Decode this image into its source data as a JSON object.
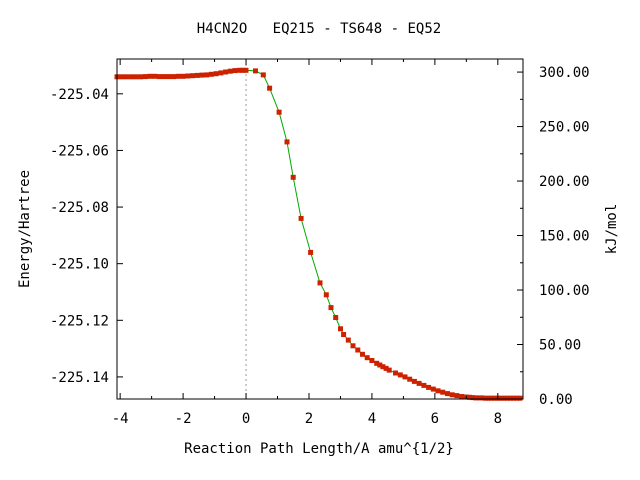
{
  "chart_data": {
    "type": "line",
    "title": "H4CN2O   EQ215 - TS648 - EQ52",
    "xlabel": "Reaction Path Length/A amu^{1/2}",
    "ylabel": "Energy/Hartree",
    "y2label": "kJ/mol",
    "xlim": [
      -4.1,
      8.8
    ],
    "ylim": [
      -225.1478,
      -225.0277
    ],
    "y2lim": [
      0,
      312
    ],
    "x_ticks": [
      -4,
      -2,
      0,
      2,
      4,
      6,
      8
    ],
    "x_tick_labels": [
      "-4",
      "-2",
      "0",
      "2",
      "4",
      "6",
      "8"
    ],
    "y_ticks": [
      -225.04,
      -225.06,
      -225.08,
      -225.1,
      -225.12,
      -225.14
    ],
    "y_tick_labels": [
      "-225.04",
      "-225.06",
      "-225.08",
      "-225.10",
      "-225.12",
      "-225.14"
    ],
    "y2_ticks": [
      0,
      50,
      100,
      150,
      200,
      250,
      300
    ],
    "y2_tick_labels": [
      "0.00",
      "50.00",
      "100.00",
      "150.00",
      "200.00",
      "250.00",
      "300.00"
    ],
    "ts_marker_x": 0,
    "line_color": "#00aa00",
    "marker_color": "#cc2200",
    "guide_color": "#999999",
    "series": [
      {
        "x": [
          -4.1,
          -3.95,
          -3.8,
          -3.65,
          -3.5,
          -3.35,
          -3.2,
          -3.05,
          -2.9,
          -2.75,
          -2.6,
          -2.45,
          -2.3,
          -2.15,
          -2.0,
          -1.85,
          -1.7,
          -1.55,
          -1.4,
          -1.25,
          -1.1,
          -0.95,
          -0.8,
          -0.65,
          -0.5,
          -0.35,
          -0.2,
          -0.1,
          0.0,
          0.3,
          0.55,
          0.75,
          1.05,
          1.3,
          1.5,
          1.75,
          2.05,
          2.35,
          2.55,
          2.7,
          2.85,
          3.0,
          3.1,
          3.25,
          3.4,
          3.55,
          3.7,
          3.85,
          4.0,
          4.15,
          4.25,
          4.35,
          4.45,
          4.55,
          4.75,
          4.9,
          5.05,
          5.2,
          5.35,
          5.5,
          5.65,
          5.8,
          5.95,
          6.1,
          6.25,
          6.4,
          6.55,
          6.7,
          6.85,
          7.0,
          7.1,
          7.2,
          7.3,
          7.4,
          7.5,
          7.6,
          7.7,
          7.8,
          7.9,
          8.0,
          8.1,
          8.2,
          8.3,
          8.4,
          8.5,
          8.6,
          8.7
        ],
        "y": [
          -225.034,
          -225.034,
          -225.034,
          -225.034,
          -225.034,
          -225.034,
          -225.0339,
          -225.0338,
          -225.0338,
          -225.0339,
          -225.0339,
          -225.0339,
          -225.0339,
          -225.0338,
          -225.0338,
          -225.0337,
          -225.0336,
          -225.0335,
          -225.0334,
          -225.0333,
          -225.0331,
          -225.0329,
          -225.0326,
          -225.0323,
          -225.032,
          -225.0318,
          -225.0317,
          -225.0317,
          -225.0317,
          -225.0319,
          -225.0333,
          -225.038,
          -225.0465,
          -225.057,
          -225.0695,
          -225.084,
          -225.096,
          -225.1068,
          -225.111,
          -225.1155,
          -225.119,
          -225.123,
          -225.125,
          -225.127,
          -225.129,
          -225.1305,
          -225.132,
          -225.1332,
          -225.1342,
          -225.1352,
          -225.1358,
          -225.1364,
          -225.137,
          -225.1376,
          -225.1386,
          -225.1393,
          -225.14,
          -225.1408,
          -225.1416,
          -225.1423,
          -225.143,
          -225.1437,
          -225.1443,
          -225.1449,
          -225.1454,
          -225.1459,
          -225.1463,
          -225.1466,
          -225.1469,
          -225.1471,
          -225.1472,
          -225.1473,
          -225.1474,
          -225.1474,
          -225.1474,
          -225.1475,
          -225.1475,
          -225.1475,
          -225.1475,
          -225.1475,
          -225.1475,
          -225.1475,
          -225.1475,
          -225.1475,
          -225.1475,
          -225.1475,
          -225.1475
        ]
      }
    ]
  }
}
